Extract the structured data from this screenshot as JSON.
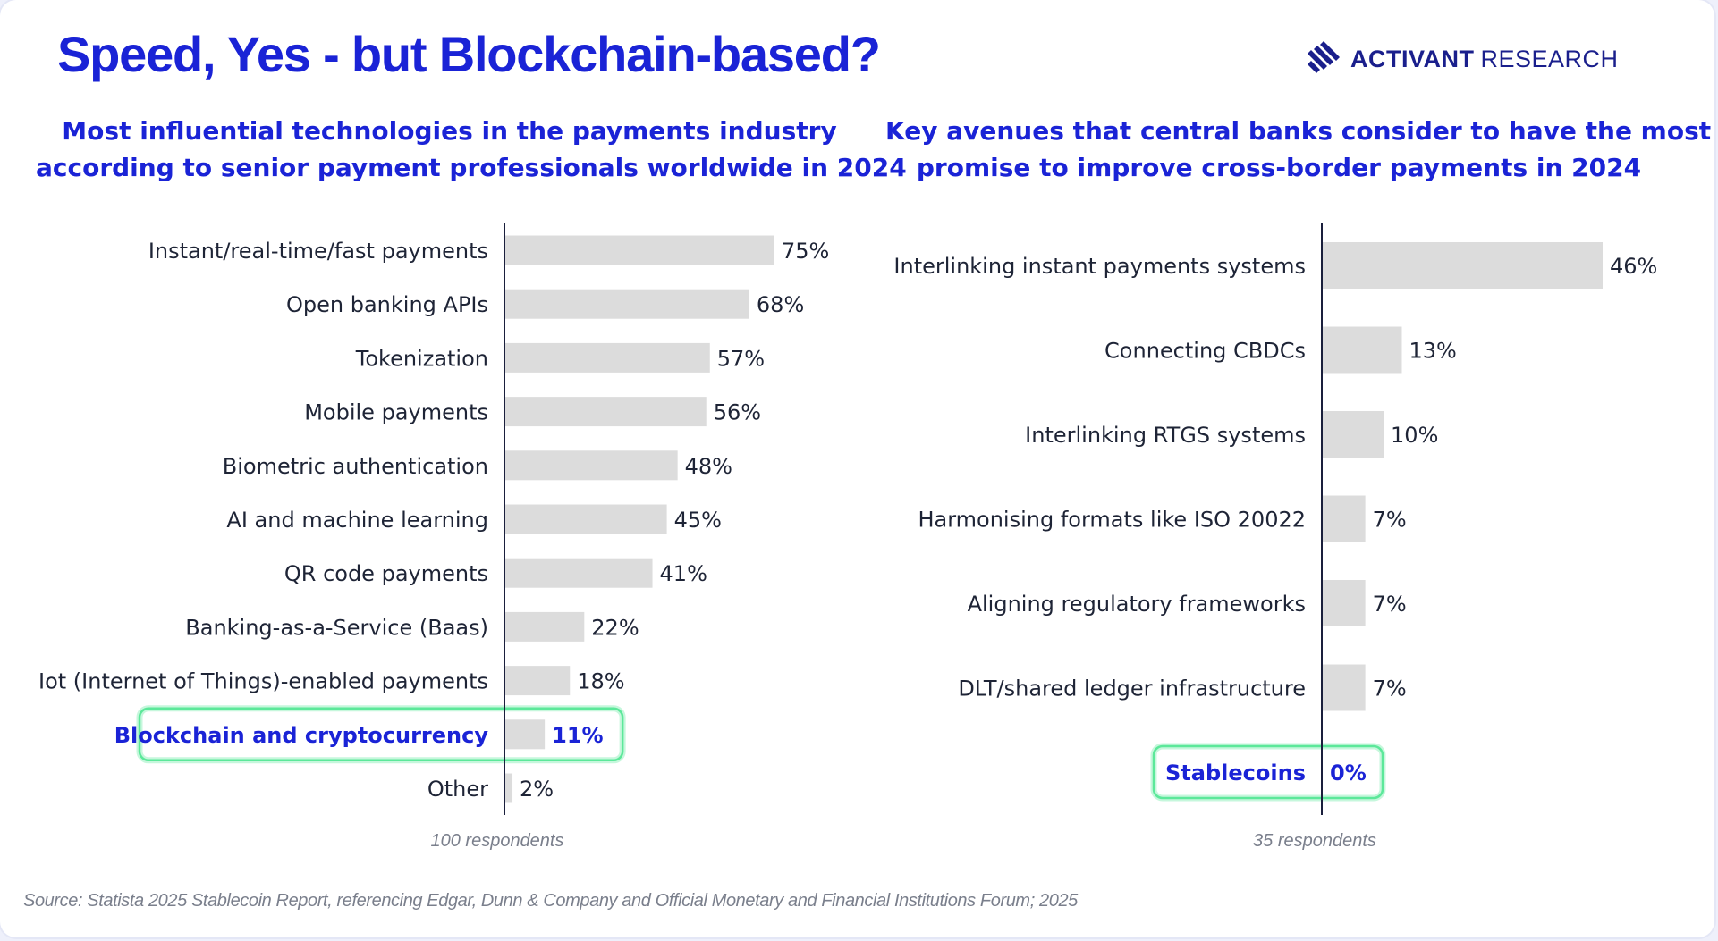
{
  "page": {
    "title": "Speed, Yes - but Blockchain-based?",
    "brand": {
      "name_bold": "ACTIVANT",
      "name_light": "RESEARCH",
      "logo_icon": "stripes-logo-icon"
    },
    "source": "Source: Statista 2025 Stablecoin Report, referencing Edgar, Dunn & Company and Official Monetary and Financial Institutions Forum; 2025",
    "colors": {
      "title": "#1a23d6",
      "bar": "#dcdcdc",
      "axis": "#1a1f3c",
      "highlight_glow": "#5ce89a"
    }
  },
  "chart_data": [
    {
      "type": "bar",
      "orientation": "horizontal",
      "title_lines": [
        "Most influential technologies in the payments industry",
        "according to senior payment professionals worldwide in 2024"
      ],
      "categories": [
        "Instant/real-time/fast payments",
        "Open banking APIs",
        "Tokenization",
        "Mobile payments",
        "Biometric authentication",
        "AI and machine learning",
        "QR code payments",
        "Banking-as-a-Service (Baas)",
        "Iot (Internet of Things)-enabled payments",
        "Blockchain and cryptocurrency",
        "Other"
      ],
      "values": [
        75,
        68,
        57,
        56,
        48,
        45,
        41,
        22,
        18,
        11,
        2
      ],
      "value_labels": [
        "75%",
        "68%",
        "57%",
        "56%",
        "48%",
        "45%",
        "41%",
        "22%",
        "18%",
        "11%",
        "2%"
      ],
      "highlight": "Blockchain and cryptocurrency",
      "note": "100 respondents",
      "xlim": [
        0,
        75
      ],
      "grid": false,
      "legend": "none"
    },
    {
      "type": "bar",
      "orientation": "horizontal",
      "title_lines": [
        "Key avenues that central banks consider to have the most",
        "promise to improve cross-border payments in 2024"
      ],
      "categories": [
        "Interlinking instant payments systems",
        "Connecting CBDCs",
        "Interlinking RTGS systems",
        "Harmonising formats like ISO 20022",
        "Aligning regulatory frameworks",
        "DLT/shared ledger infrastructure",
        "Stablecoins"
      ],
      "values": [
        46,
        13,
        10,
        7,
        7,
        7,
        0
      ],
      "value_labels": [
        "46%",
        "13%",
        "10%",
        "7%",
        "7%",
        "7%",
        "0%"
      ],
      "highlight": "Stablecoins",
      "note": "35 respondents",
      "xlim": [
        0,
        46
      ],
      "grid": false,
      "legend": "none"
    }
  ]
}
